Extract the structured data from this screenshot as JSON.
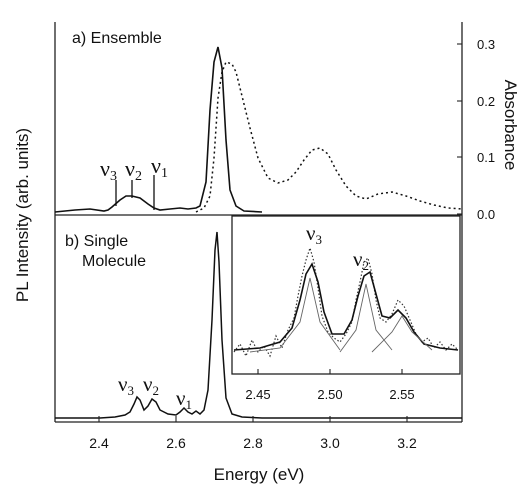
{
  "figure": {
    "xlabel": "Energy (eV)",
    "ylabel_left": "PL Intensity (arb. units)",
    "ylabel_right": "Absorbance",
    "panel_a_label": "a)  Ensemble",
    "panel_b_label_line1": "b)  Single",
    "panel_b_label_line2": "Molecule",
    "nu_symbol": "ν",
    "mode_labels": [
      "3",
      "2",
      "1"
    ]
  },
  "chart_data": [
    {
      "panel": "a",
      "type": "line",
      "xlim": [
        2.24,
        3.3
      ],
      "ylim_right": [
        0,
        0.34
      ],
      "x_ticks": [
        2.4,
        2.6,
        2.8,
        3.0,
        3.2
      ],
      "y_right_ticks": [
        0.0,
        0.1,
        0.2,
        0.3
      ],
      "y_right_tick_labels": [
        "0.0",
        "0.1",
        "0.2",
        "0.3"
      ],
      "series": [
        {
          "style": "solid",
          "axis": "left (arb. units, relative)",
          "x": [
            2.24,
            2.3,
            2.35,
            2.4,
            2.45,
            2.48,
            2.5,
            2.52,
            2.55,
            2.58,
            2.6,
            2.63,
            2.65,
            2.67,
            2.68,
            2.685,
            2.69,
            2.7,
            2.71,
            2.73,
            2.76,
            2.8
          ],
          "values": [
            0.0,
            0.005,
            0.005,
            0.01,
            0.04,
            0.08,
            0.09,
            0.09,
            0.07,
            0.04,
            0.04,
            0.05,
            0.08,
            0.3,
            0.82,
            1.0,
            0.95,
            0.55,
            0.25,
            0.06,
            0.01,
            0.0
          ]
        },
        {
          "style": "dotted",
          "axis": "right (absorbance)",
          "x": [
            2.6,
            2.63,
            2.65,
            2.67,
            2.685,
            2.7,
            2.72,
            2.74,
            2.76,
            2.79,
            2.82,
            2.84,
            2.86,
            2.88,
            2.9,
            2.92,
            2.94,
            2.97,
            3.0,
            3.04,
            3.08,
            3.12,
            3.17,
            3.22,
            3.27
          ],
          "values": [
            0.005,
            0.012,
            0.03,
            0.13,
            0.265,
            0.28,
            0.262,
            0.215,
            0.155,
            0.095,
            0.08,
            0.085,
            0.1,
            0.122,
            0.134,
            0.125,
            0.1,
            0.06,
            0.035,
            0.03,
            0.034,
            0.028,
            0.016,
            0.008,
            0.004
          ]
        }
      ],
      "annotations": [
        {
          "text": "ν3",
          "x": 2.49
        },
        {
          "text": "ν2",
          "x": 2.53
        },
        {
          "text": "ν1",
          "x": 2.59
        }
      ]
    },
    {
      "panel": "b",
      "type": "line",
      "xlim": [
        2.24,
        3.3
      ],
      "x_ticks": [
        2.4,
        2.6,
        2.8,
        3.0,
        3.2
      ],
      "x_tick_labels": [
        "2.4",
        "2.6",
        "2.8",
        "3.0",
        "3.2"
      ],
      "series": [
        {
          "style": "solid",
          "x": [
            2.24,
            2.3,
            2.35,
            2.4,
            2.44,
            2.46,
            2.47,
            2.48,
            2.49,
            2.5,
            2.51,
            2.52,
            2.53,
            2.54,
            2.56,
            2.58,
            2.59,
            2.6,
            2.61,
            2.62,
            2.63,
            2.64,
            2.65,
            2.66,
            2.67,
            2.675,
            2.68,
            2.685,
            2.69,
            2.7,
            2.72,
            2.75,
            2.8,
            3.3
          ],
          "values": [
            0.0,
            0.0,
            0.0,
            0.005,
            0.01,
            0.04,
            0.08,
            0.12,
            0.09,
            0.06,
            0.08,
            0.11,
            0.08,
            0.05,
            0.03,
            0.02,
            0.04,
            0.03,
            0.02,
            0.03,
            0.02,
            0.01,
            0.03,
            0.06,
            0.25,
            0.6,
            0.97,
            0.85,
            0.45,
            0.12,
            0.02,
            0.005,
            0.0,
            0.0
          ]
        }
      ],
      "annotations": [
        {
          "text": "ν3",
          "x": 2.48
        },
        {
          "text": "ν2",
          "x": 2.52
        },
        {
          "text": "ν1",
          "x": 2.6
        }
      ]
    },
    {
      "panel": "inset",
      "type": "line",
      "xlim": [
        2.41,
        2.575
      ],
      "x_ticks": [
        2.45,
        2.5,
        2.55
      ],
      "x_tick_labels": [
        "2.45",
        "2.50",
        "2.55"
      ],
      "series": [
        {
          "style": "noisy data (dotted)",
          "x": [
            2.41,
            2.43,
            2.45,
            2.46,
            2.47,
            2.475,
            2.48,
            2.485,
            2.49,
            2.5,
            2.505,
            2.51,
            2.515,
            2.52,
            2.53,
            2.54,
            2.55,
            2.56,
            2.575
          ],
          "values": [
            0.12,
            0.13,
            0.18,
            0.28,
            0.55,
            0.75,
            0.85,
            0.7,
            0.45,
            0.45,
            0.6,
            0.72,
            0.6,
            0.42,
            0.38,
            0.32,
            0.2,
            0.14,
            0.12
          ]
        },
        {
          "style": "solid fit",
          "x": [
            2.41,
            2.43,
            2.45,
            2.46,
            2.47,
            2.475,
            2.48,
            2.485,
            2.49,
            2.5,
            2.505,
            2.51,
            2.515,
            2.52,
            2.53,
            2.54,
            2.55,
            2.56,
            2.575
          ],
          "values": [
            0.12,
            0.13,
            0.17,
            0.25,
            0.5,
            0.68,
            0.78,
            0.66,
            0.46,
            0.44,
            0.57,
            0.66,
            0.56,
            0.4,
            0.35,
            0.3,
            0.2,
            0.14,
            0.12
          ]
        }
      ],
      "annotations": [
        {
          "text": "ν3",
          "x": 2.475
        },
        {
          "text": "ν2",
          "x": 2.505
        }
      ]
    }
  ]
}
